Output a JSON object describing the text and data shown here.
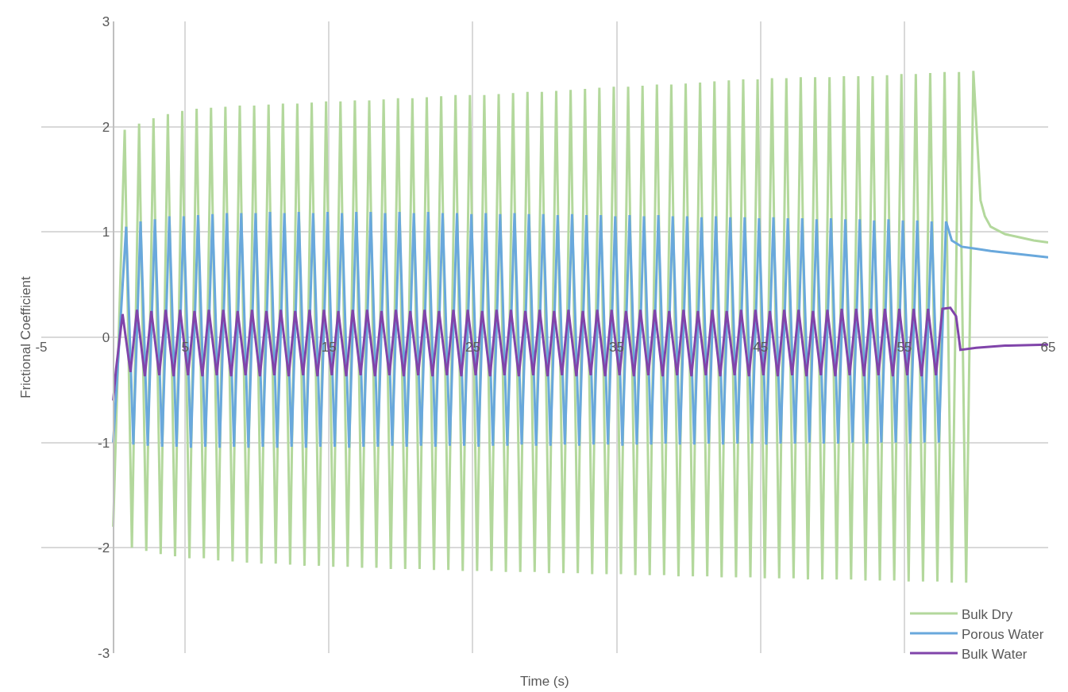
{
  "chart_data": {
    "type": "line",
    "xlabel": "Time (s)",
    "ylabel": "Frictional Coefficient",
    "xlim": [
      -5,
      65
    ],
    "xticks": [
      -5,
      5,
      15,
      25,
      35,
      45,
      55,
      65
    ],
    "ylim": [
      -3,
      3
    ],
    "yticks": [
      -3,
      -2,
      -1,
      0,
      1,
      2,
      3
    ],
    "grid": true,
    "legend": "bottom right",
    "marker": "none",
    "line_style": "solid",
    "series": [
      {
        "name": "Bulk Dry",
        "color": "#b3d89c",
        "x": [
          0,
          0.8,
          1.3,
          1.8,
          2.3,
          2.8,
          3.3,
          3.8,
          4.3,
          4.8,
          5.3,
          5.8,
          6.3,
          6.8,
          7.3,
          7.8,
          8.3,
          8.8,
          9.3,
          9.8,
          10.3,
          10.8,
          11.3,
          11.8,
          12.3,
          12.8,
          13.3,
          13.8,
          14.3,
          14.8,
          15.3,
          15.8,
          16.3,
          16.8,
          17.3,
          17.8,
          18.3,
          18.8,
          19.3,
          19.8,
          20.3,
          20.8,
          21.3,
          21.8,
          22.3,
          22.8,
          23.3,
          23.8,
          24.3,
          24.8,
          25.3,
          25.8,
          26.3,
          26.8,
          27.3,
          27.8,
          28.3,
          28.8,
          29.3,
          29.8,
          30.3,
          30.8,
          31.3,
          31.8,
          32.3,
          32.8,
          33.3,
          33.8,
          34.3,
          34.8,
          35.3,
          35.8,
          36.3,
          36.8,
          37.3,
          37.8,
          38.3,
          38.8,
          39.3,
          39.8,
          40.3,
          40.8,
          41.3,
          41.8,
          42.3,
          42.8,
          43.3,
          43.8,
          44.3,
          44.8,
          45.3,
          45.8,
          46.3,
          46.8,
          47.3,
          47.8,
          48.3,
          48.8,
          49.3,
          49.8,
          50.3,
          50.8,
          51.3,
          51.8,
          52.3,
          52.8,
          53.3,
          53.8,
          54.3,
          54.8,
          55.3,
          55.8,
          56.3,
          56.8,
          57.3,
          57.8,
          58.3,
          58.8,
          59.3,
          59.8,
          60.3,
          60.6,
          61,
          62,
          63,
          64,
          65
        ],
        "values": [
          -1.8,
          1.97,
          -2.0,
          2.03,
          -2.03,
          2.08,
          -2.06,
          2.12,
          -2.08,
          2.15,
          -2.1,
          2.17,
          -2.1,
          2.18,
          -2.12,
          2.19,
          -2.13,
          2.2,
          -2.14,
          2.2,
          -2.15,
          2.21,
          -2.15,
          2.22,
          -2.16,
          2.22,
          -2.17,
          2.23,
          -2.17,
          2.24,
          -2.18,
          2.24,
          -2.18,
          2.25,
          -2.19,
          2.25,
          -2.19,
          2.26,
          -2.2,
          2.27,
          -2.2,
          2.27,
          -2.2,
          2.28,
          -2.21,
          2.29,
          -2.21,
          2.3,
          -2.22,
          2.3,
          -2.22,
          2.3,
          -2.22,
          2.31,
          -2.23,
          2.32,
          -2.23,
          2.33,
          -2.23,
          2.33,
          -2.24,
          2.34,
          -2.24,
          2.35,
          -2.24,
          2.36,
          -2.25,
          2.37,
          -2.25,
          2.38,
          -2.25,
          2.38,
          -2.26,
          2.39,
          -2.26,
          2.4,
          -2.26,
          2.4,
          -2.27,
          2.41,
          -2.27,
          2.42,
          -2.27,
          2.43,
          -2.28,
          2.44,
          -2.28,
          2.45,
          -2.28,
          2.45,
          -2.29,
          2.46,
          -2.29,
          2.46,
          -2.29,
          2.47,
          -2.3,
          2.47,
          -2.3,
          2.47,
          -2.3,
          2.48,
          -2.3,
          2.48,
          -2.31,
          2.48,
          -2.31,
          2.49,
          -2.31,
          2.5,
          -2.32,
          2.5,
          -2.32,
          2.51,
          -2.32,
          2.52,
          -2.33,
          2.52,
          -2.33,
          2.53,
          1.3,
          1.15,
          1.05,
          0.98,
          0.95,
          0.92,
          0.9
        ]
      },
      {
        "name": "Porous Water",
        "color": "#69a8dc",
        "x": [
          0,
          0.9,
          1.4,
          1.9,
          2.4,
          2.9,
          3.4,
          3.9,
          4.4,
          4.9,
          5.4,
          5.9,
          6.4,
          6.9,
          7.4,
          7.9,
          8.4,
          8.9,
          9.4,
          9.9,
          10.4,
          10.9,
          11.4,
          11.9,
          12.4,
          12.9,
          13.4,
          13.9,
          14.4,
          14.9,
          15.4,
          15.9,
          16.4,
          16.9,
          17.4,
          17.9,
          18.4,
          18.9,
          19.4,
          19.9,
          20.4,
          20.9,
          21.4,
          21.9,
          22.4,
          22.9,
          23.4,
          23.9,
          24.4,
          24.9,
          25.4,
          25.9,
          26.4,
          26.9,
          27.4,
          27.9,
          28.4,
          28.9,
          29.4,
          29.9,
          30.4,
          30.9,
          31.4,
          31.9,
          32.4,
          32.9,
          33.4,
          33.9,
          34.4,
          34.9,
          35.4,
          35.9,
          36.4,
          36.9,
          37.4,
          37.9,
          38.4,
          38.9,
          39.4,
          39.9,
          40.4,
          40.9,
          41.4,
          41.9,
          42.4,
          42.9,
          43.4,
          43.9,
          44.4,
          44.9,
          45.4,
          45.9,
          46.4,
          46.9,
          47.4,
          47.9,
          48.4,
          48.9,
          49.4,
          49.9,
          50.4,
          50.9,
          51.4,
          51.9,
          52.4,
          52.9,
          53.4,
          53.9,
          54.4,
          54.9,
          55.4,
          55.9,
          56.4,
          56.9,
          57.4,
          57.9,
          58.3,
          59,
          60,
          61,
          63,
          65
        ],
        "values": [
          -1.0,
          1.05,
          -1.02,
          1.1,
          -1.03,
          1.12,
          -1.04,
          1.15,
          -1.04,
          1.15,
          -1.05,
          1.16,
          -1.04,
          1.17,
          -1.05,
          1.18,
          -1.04,
          1.18,
          -1.05,
          1.18,
          -1.04,
          1.19,
          -1.05,
          1.18,
          -1.04,
          1.19,
          -1.05,
          1.18,
          -1.04,
          1.19,
          -1.04,
          1.18,
          -1.05,
          1.19,
          -1.04,
          1.19,
          -1.04,
          1.18,
          -1.03,
          1.19,
          -1.04,
          1.18,
          -1.03,
          1.19,
          -1.04,
          1.18,
          -1.03,
          1.18,
          -1.03,
          1.17,
          -1.04,
          1.18,
          -1.03,
          1.17,
          -1.03,
          1.18,
          -1.02,
          1.17,
          -1.03,
          1.17,
          -1.03,
          1.16,
          -1.02,
          1.17,
          -1.03,
          1.16,
          -1.02,
          1.16,
          -1.02,
          1.15,
          -1.03,
          1.16,
          -1.02,
          1.15,
          -1.02,
          1.16,
          -1.01,
          1.15,
          -1.02,
          1.15,
          -1.02,
          1.14,
          -1.01,
          1.15,
          -1.02,
          1.14,
          -1.01,
          1.14,
          -1.01,
          1.13,
          -1.02,
          1.14,
          -1.01,
          1.13,
          -1.01,
          1.13,
          -1.0,
          1.12,
          -1.01,
          1.13,
          -1.01,
          1.12,
          -1.0,
          1.12,
          -1.01,
          1.11,
          -1.0,
          1.12,
          -1.0,
          1.11,
          -1.01,
          1.11,
          -1.0,
          1.1,
          -1.0,
          1.1,
          0.92,
          0.86,
          0.84,
          0.82,
          0.79,
          0.76
        ]
      },
      {
        "name": "Bulk Water",
        "color": "#8044aa",
        "x": [
          0,
          0.2,
          0.65,
          1.2,
          1.65,
          2.2,
          2.65,
          3.2,
          3.65,
          4.2,
          4.65,
          5.2,
          5.65,
          6.2,
          6.65,
          7.2,
          7.65,
          8.2,
          8.65,
          9.2,
          9.65,
          10.2,
          10.65,
          11.2,
          11.65,
          12.2,
          12.65,
          13.2,
          13.65,
          14.2,
          14.65,
          15.2,
          15.65,
          16.2,
          16.65,
          17.2,
          17.65,
          18.2,
          18.65,
          19.2,
          19.65,
          20.2,
          20.65,
          21.2,
          21.65,
          22.2,
          22.65,
          23.2,
          23.65,
          24.2,
          24.65,
          25.2,
          25.65,
          26.2,
          26.65,
          27.2,
          27.65,
          28.2,
          28.65,
          29.2,
          29.65,
          30.2,
          30.65,
          31.2,
          31.65,
          32.2,
          32.65,
          33.2,
          33.65,
          34.2,
          34.65,
          35.2,
          35.65,
          36.2,
          36.65,
          37.2,
          37.65,
          38.2,
          38.65,
          39.2,
          39.65,
          40.2,
          40.65,
          41.2,
          41.65,
          42.2,
          42.65,
          43.2,
          43.65,
          44.2,
          44.65,
          45.2,
          45.65,
          46.2,
          46.65,
          47.2,
          47.65,
          48.2,
          48.65,
          49.2,
          49.65,
          50.2,
          50.65,
          51.2,
          51.65,
          52.2,
          52.65,
          53.2,
          53.65,
          54.2,
          54.65,
          55.2,
          55.65,
          56.2,
          56.65,
          57.2,
          57.65,
          58.2,
          58.6,
          58.9,
          60,
          62,
          65
        ],
        "values": [
          -0.6,
          -0.3,
          0.22,
          -0.33,
          0.26,
          -0.37,
          0.25,
          -0.36,
          0.26,
          -0.37,
          0.26,
          -0.36,
          0.25,
          -0.37,
          0.26,
          -0.36,
          0.26,
          -0.37,
          0.25,
          -0.36,
          0.26,
          -0.37,
          0.25,
          -0.36,
          0.26,
          -0.37,
          0.25,
          -0.36,
          0.26,
          -0.37,
          0.26,
          -0.36,
          0.25,
          -0.37,
          0.26,
          -0.36,
          0.26,
          -0.37,
          0.25,
          -0.36,
          0.26,
          -0.37,
          0.25,
          -0.36,
          0.26,
          -0.37,
          0.25,
          -0.36,
          0.26,
          -0.37,
          0.26,
          -0.36,
          0.25,
          -0.37,
          0.26,
          -0.36,
          0.26,
          -0.37,
          0.25,
          -0.36,
          0.26,
          -0.37,
          0.25,
          -0.36,
          0.26,
          -0.37,
          0.25,
          -0.36,
          0.26,
          -0.37,
          0.26,
          -0.36,
          0.25,
          -0.37,
          0.26,
          -0.36,
          0.26,
          -0.37,
          0.25,
          -0.36,
          0.26,
          -0.37,
          0.25,
          -0.36,
          0.26,
          -0.37,
          0.25,
          -0.36,
          0.26,
          -0.37,
          0.26,
          -0.36,
          0.25,
          -0.37,
          0.26,
          -0.36,
          0.26,
          -0.37,
          0.25,
          -0.36,
          0.26,
          -0.37,
          0.27,
          -0.36,
          0.27,
          -0.37,
          0.27,
          -0.36,
          0.27,
          -0.37,
          0.27,
          -0.36,
          0.27,
          -0.37,
          0.27,
          -0.36,
          0.27,
          0.28,
          0.2,
          -0.12,
          -0.1,
          -0.08,
          -0.07
        ]
      }
    ]
  }
}
